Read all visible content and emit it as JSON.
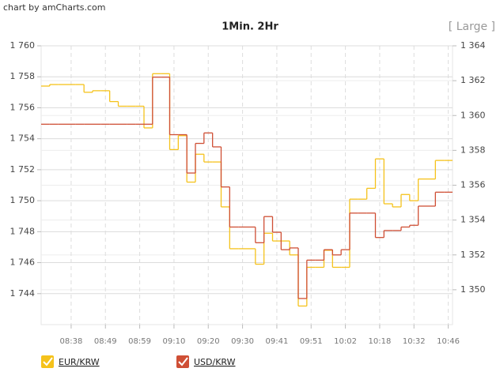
{
  "chart_data": {
    "type": "step-line",
    "credit": "chart by amCharts.com",
    "title": "1Min. 2Hr",
    "size_button": "[ Large ]",
    "categories": [
      null,
      null,
      null,
      "08:38",
      null,
      null,
      null,
      "08:49",
      null,
      null,
      null,
      "08:59",
      null,
      null,
      null,
      "09:10",
      null,
      null,
      null,
      "09:20",
      null,
      null,
      null,
      "09:30",
      null,
      null,
      null,
      "09:41",
      null,
      null,
      null,
      "09:51",
      null,
      null,
      null,
      "10:02",
      null,
      null,
      null,
      "10:18",
      null,
      null,
      null,
      "10:32",
      null,
      null,
      null,
      "10:46"
    ],
    "series": [
      {
        "name": "EUR/KRW",
        "color": "#f5c21b",
        "axis": "y",
        "values": [
          1757.4,
          1757.5,
          1757.5,
          1757.5,
          1757.5,
          1757.0,
          1757.1,
          1757.1,
          1756.4,
          1756.1,
          1756.1,
          1756.1,
          1754.7,
          1758.2,
          1758.2,
          1753.3,
          1754.2,
          1751.2,
          1753.0,
          1752.5,
          1752.5,
          1749.6,
          1746.9,
          1746.9,
          1746.9,
          1745.9,
          1747.9,
          1747.4,
          1747.4,
          1746.5,
          1743.2,
          1745.7,
          1745.7,
          1746.8,
          1745.7,
          1745.7,
          1750.1,
          1750.1,
          1750.8,
          1752.7,
          1749.8,
          1749.6,
          1750.4,
          1750.0,
          1751.4,
          1751.4,
          1752.6,
          1752.6
        ]
      },
      {
        "name": "USD/KRW",
        "color": "#cf4f35",
        "axis": "y2",
        "values": [
          1359.5,
          1359.5,
          1359.5,
          1359.5,
          1359.5,
          1359.5,
          1359.5,
          1359.5,
          1359.5,
          1359.5,
          1359.5,
          1359.5,
          1359.5,
          1362.2,
          1362.2,
          1358.9,
          1358.9,
          1356.7,
          1358.4,
          1359.0,
          1358.2,
          1355.9,
          1353.6,
          1353.6,
          1353.6,
          1352.7,
          1354.2,
          1353.3,
          1352.3,
          1352.4,
          1349.5,
          1351.7,
          1351.7,
          1352.3,
          1352.0,
          1352.3,
          1354.4,
          1354.4,
          1354.4,
          1353.0,
          1353.4,
          1353.4,
          1353.6,
          1353.7,
          1354.8,
          1354.8,
          1355.6,
          1355.6
        ]
      }
    ],
    "ylim": [
      1742,
      1760
    ],
    "yticks": [
      {
        "value": 1744,
        "label": "1 744"
      },
      {
        "value": 1746,
        "label": "1 746"
      },
      {
        "value": 1748,
        "label": "1 748"
      },
      {
        "value": 1750,
        "label": "1 750"
      },
      {
        "value": 1752,
        "label": "1 752"
      },
      {
        "value": 1754,
        "label": "1 754"
      },
      {
        "value": 1756,
        "label": "1 756"
      },
      {
        "value": 1758,
        "label": "1 758"
      },
      {
        "value": 1760,
        "label": "1 760"
      }
    ],
    "y2lim": [
      1348,
      1364
    ],
    "y2ticks": [
      {
        "value": 1350,
        "label": "1 350"
      },
      {
        "value": 1352,
        "label": "1 352"
      },
      {
        "value": 1354,
        "label": "1 354"
      },
      {
        "value": 1356,
        "label": "1 356"
      },
      {
        "value": 1358,
        "label": "1 358"
      },
      {
        "value": 1360,
        "label": "1 360"
      },
      {
        "value": 1362,
        "label": "1 362"
      },
      {
        "value": 1364,
        "label": "1 364"
      }
    ],
    "grid": true
  }
}
